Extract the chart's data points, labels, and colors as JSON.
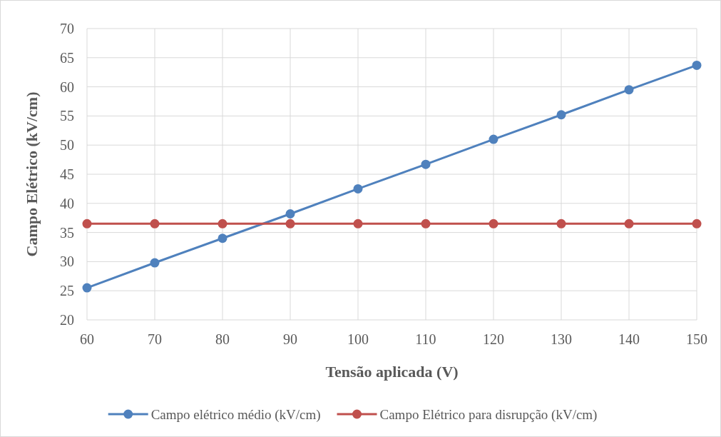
{
  "chart_data": {
    "type": "line",
    "xlabel": "Tensão aplicada (V)",
    "ylabel": "Campo Elétrico  (kV/cm)",
    "x": [
      60,
      70,
      80,
      90,
      100,
      110,
      120,
      130,
      140,
      150
    ],
    "series": [
      {
        "name": "Campo elétrico médio (kV/cm)",
        "color": "#4f81bd",
        "values": [
          25.5,
          29.8,
          34.0,
          38.2,
          42.5,
          46.7,
          51.0,
          55.2,
          59.5,
          63.7
        ]
      },
      {
        "name": "Campo Elétrico para disrupção  (kV/cm)",
        "color": "#c0504d",
        "values": [
          36.5,
          36.5,
          36.5,
          36.5,
          36.5,
          36.5,
          36.5,
          36.5,
          36.5,
          36.5
        ]
      }
    ],
    "xlim": [
      60,
      150
    ],
    "xticks": [
      60,
      70,
      80,
      90,
      100,
      110,
      120,
      130,
      140,
      150
    ],
    "ylim": [
      20,
      70
    ],
    "yticks": [
      20,
      25,
      30,
      35,
      40,
      45,
      50,
      55,
      60,
      65,
      70
    ],
    "grid": true,
    "legend": "bottom",
    "marker": "circle",
    "line_style": "solid"
  }
}
